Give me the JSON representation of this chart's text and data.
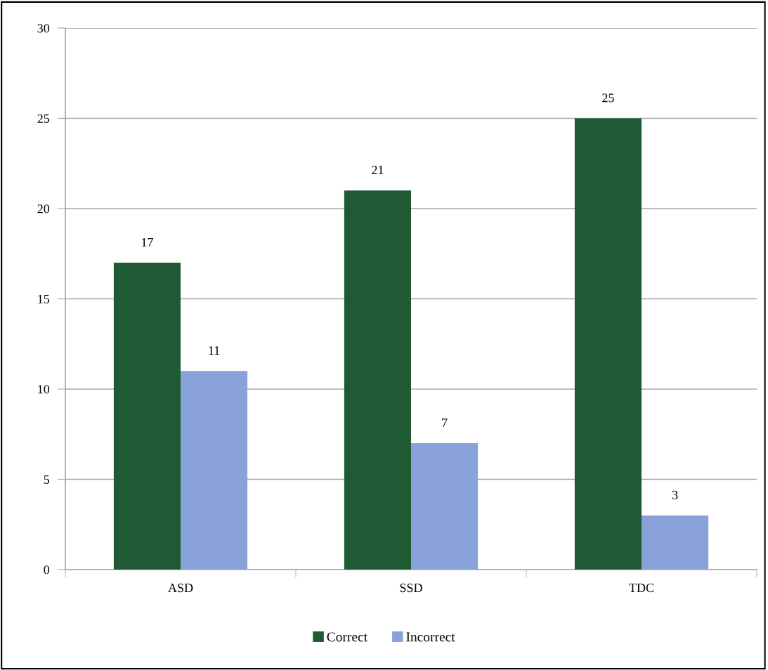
{
  "chart_data": {
    "type": "bar",
    "categories": [
      "ASD",
      "SSD",
      "TDC"
    ],
    "series": [
      {
        "name": "Correct",
        "color": "#1f5a34",
        "values": [
          17,
          21,
          25
        ]
      },
      {
        "name": "Incorrect",
        "color": "#8aa2da",
        "values": [
          11,
          7,
          3
        ]
      }
    ],
    "ylim": [
      0,
      30
    ],
    "yticks": [
      0,
      5,
      10,
      15,
      20,
      25,
      30
    ],
    "grid": "y",
    "legend": "bottom",
    "data_labels": true
  }
}
